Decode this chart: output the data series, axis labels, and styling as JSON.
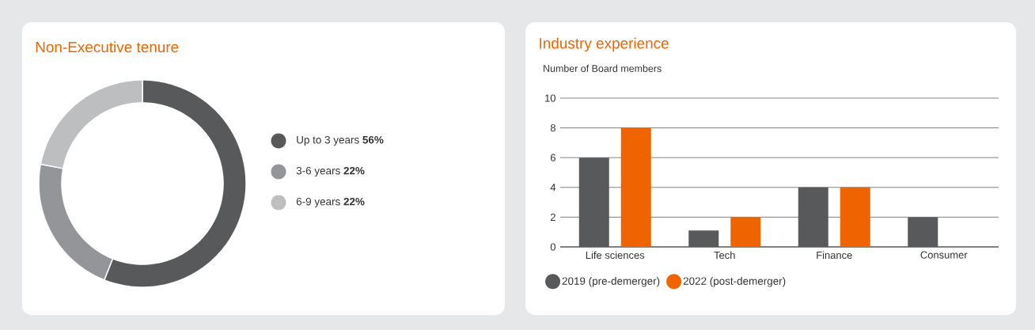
{
  "chart_data": [
    {
      "type": "donut",
      "title": "Non-Executive tenure",
      "categories": [
        "Up to 3 years",
        "3-6 years",
        "6-9 years"
      ],
      "values": [
        56,
        22,
        22
      ],
      "colors": [
        "#58595b",
        "#939598",
        "#bcbec0"
      ],
      "value_labels": [
        "56%",
        "22%",
        "22%"
      ],
      "legend": "right"
    },
    {
      "type": "bar",
      "title": "Industry experience",
      "ylabel": "Number of Board members",
      "categories": [
        "Life sciences",
        "Tech",
        "Finance",
        "Consumer"
      ],
      "series": [
        {
          "name": "2019 (pre-demerger)",
          "color": "#58595b",
          "values": [
            6,
            1.1,
            4,
            2
          ]
        },
        {
          "name": "2022 (post-demerger)",
          "color": "#f06400",
          "values": [
            8,
            2,
            4,
            0
          ]
        }
      ],
      "ylim": [
        0,
        10
      ],
      "yticks": [
        0,
        2,
        4,
        6,
        8,
        10
      ],
      "grid": "y",
      "legend": "bottom"
    }
  ]
}
